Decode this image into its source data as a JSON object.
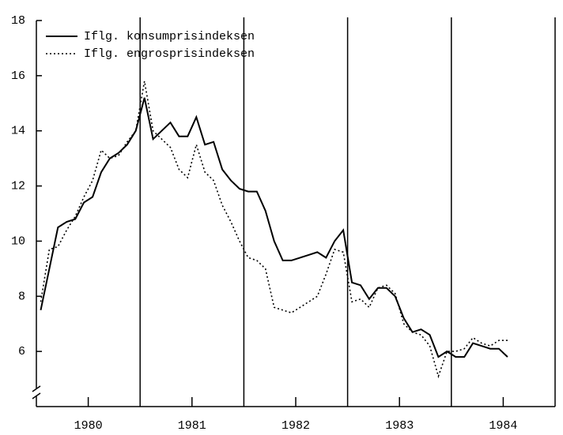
{
  "chart_data": {
    "type": "line",
    "x": [
      1980.042,
      1980.125,
      1980.208,
      1980.292,
      1980.375,
      1980.458,
      1980.542,
      1980.625,
      1980.708,
      1980.792,
      1980.875,
      1980.958,
      1981.042,
      1981.125,
      1981.208,
      1981.292,
      1981.375,
      1981.458,
      1981.542,
      1981.625,
      1981.708,
      1981.792,
      1981.875,
      1981.958,
      1982.042,
      1982.125,
      1982.208,
      1982.292,
      1982.375,
      1982.458,
      1982.542,
      1982.625,
      1982.708,
      1982.792,
      1982.875,
      1982.958,
      1983.042,
      1983.125,
      1983.208,
      1983.292,
      1983.375,
      1983.458,
      1983.542,
      1983.625,
      1983.708,
      1983.792,
      1983.875,
      1983.958,
      1984.042,
      1984.125,
      1984.208,
      1984.292,
      1984.375,
      1984.458,
      1984.542
    ],
    "series": [
      {
        "name": "Iflg. konsumprisindeksen",
        "color": "#000000",
        "dash": "solid",
        "values": [
          7.5,
          9.0,
          10.5,
          10.7,
          10.8,
          11.4,
          11.6,
          12.5,
          13.0,
          13.2,
          13.5,
          14.0,
          15.2,
          13.7,
          14.0,
          14.3,
          13.8,
          13.8,
          14.5,
          13.5,
          13.6,
          12.6,
          12.2,
          11.9,
          11.8,
          11.8,
          11.1,
          10.0,
          9.3,
          9.3,
          9.4,
          9.5,
          9.6,
          9.4,
          10.0,
          10.4,
          8.5,
          8.4,
          7.9,
          8.3,
          8.3,
          8.0,
          7.2,
          6.7,
          6.8,
          6.6,
          5.8,
          6.0,
          5.8,
          5.8,
          6.3,
          6.2,
          6.1,
          6.1,
          5.8
        ]
      },
      {
        "name": "Iflg. engrosprisindeksen",
        "color": "#000000",
        "dash": "dotted",
        "values": [
          7.8,
          9.7,
          9.8,
          10.4,
          10.9,
          11.6,
          12.2,
          13.3,
          13.0,
          13.1,
          13.6,
          14.0,
          15.8,
          14.0,
          13.7,
          13.4,
          12.6,
          12.3,
          13.5,
          12.5,
          12.2,
          11.3,
          10.7,
          10.0,
          9.4,
          9.3,
          9.0,
          7.6,
          7.5,
          7.4,
          7.6,
          7.8,
          8.0,
          8.8,
          9.7,
          9.6,
          7.8,
          7.9,
          7.6,
          8.3,
          8.4,
          8.1,
          7.0,
          6.7,
          6.6,
          6.2,
          5.1,
          6.0,
          6.0,
          6.1,
          6.5,
          6.3,
          6.2,
          6.4,
          6.4
        ]
      }
    ],
    "xlim": [
      1980,
      1985
    ],
    "xticks": [
      {
        "value": 1980.5,
        "label": "1980"
      },
      {
        "value": 1981.5,
        "label": "1981"
      },
      {
        "value": 1982.5,
        "label": "1982"
      },
      {
        "value": 1983.5,
        "label": "1983"
      },
      {
        "value": 1984.5,
        "label": "1984"
      }
    ],
    "vlines": [
      1981,
      1982,
      1983,
      1984,
      1985
    ],
    "ylim": [
      4,
      18
    ],
    "yticks": [
      6,
      8,
      10,
      12,
      14,
      16,
      18
    ],
    "legend": "top-left"
  }
}
